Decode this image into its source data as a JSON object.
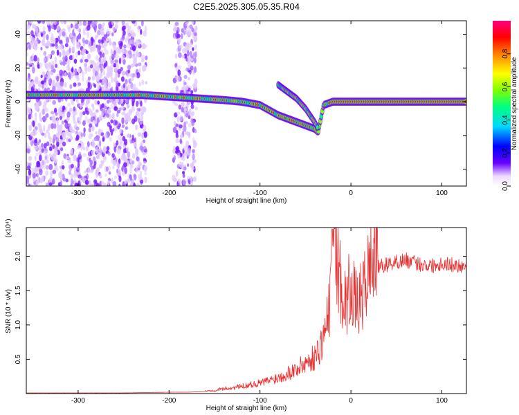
{
  "title": "C2E5.2025.305.05.35.R04",
  "chart_data": [
    {
      "type": "heatmap",
      "xlabel": "Height of straight line (km)",
      "ylabel": "Frequency (Hz)",
      "xlim": [
        -357,
        127
      ],
      "ylim": [
        -50,
        48
      ],
      "xticks": [
        -300,
        -200,
        -100,
        0,
        100
      ],
      "yticks": [
        -40,
        -20,
        0,
        20,
        40
      ],
      "colorbar": {
        "label": "Normalized spectral amplitude",
        "range": [
          0,
          1
        ],
        "ticks": [
          "0.0",
          "0.2",
          "0.4",
          "0.6",
          "0.8"
        ],
        "colors": [
          "#ffffff",
          "#f0d9ff",
          "#6600ff",
          "#0000ff",
          "#00d8ff",
          "#00ff80",
          "#7fff00",
          "#ffff00",
          "#ff8000",
          "#ff0000",
          "#ff0080"
        ]
      },
      "ridge": {
        "x": [
          -357,
          -300,
          -230,
          -200,
          -170,
          -140,
          -120,
          -100,
          -90,
          -80,
          -70,
          -60,
          -50,
          -40,
          -36,
          -30,
          -20,
          0,
          20,
          60,
          127
        ],
        "y": [
          4,
          4,
          4,
          3,
          2,
          1,
          0,
          -2,
          -5,
          -8,
          -10,
          -12,
          -14,
          -16,
          -18,
          -2,
          0,
          0,
          0,
          0,
          0
        ]
      },
      "branch": {
        "x": [
          -80,
          -70,
          -60,
          -50,
          -45,
          -40,
          -36
        ],
        "y": [
          10,
          6,
          2,
          -4,
          -8,
          -12,
          -16
        ]
      },
      "noise_band": [
        -357,
        -225
      ],
      "noise_band_2": [
        -195,
        -170
      ]
    },
    {
      "type": "line",
      "xlabel": "Height of straight line (km)",
      "ylabel": "SNR (10 * v/v)",
      "y_multiplier": "(x10⁴)",
      "xlim": [
        -357,
        127
      ],
      "ylim": [
        0,
        2.42
      ],
      "xticks": [
        -300,
        -200,
        -100,
        0,
        100
      ],
      "yticks": [
        "0.5",
        "1.0",
        "1.5",
        "2.0"
      ],
      "series": [
        {
          "color": "#e83030",
          "x": [
            -357,
            -300,
            -250,
            -200,
            -180,
            -160,
            -150,
            -140,
            -130,
            -120,
            -110,
            -100,
            -90,
            -80,
            -70,
            -60,
            -50,
            -40,
            -35,
            -30,
            -25,
            -22,
            -20,
            -18,
            -15,
            -10,
            -5,
            0,
            5,
            10,
            15,
            20,
            25,
            30,
            40,
            50,
            60,
            70,
            80,
            90,
            100,
            110,
            127
          ],
          "y": [
            0.01,
            0.01,
            0.01,
            0.02,
            0.02,
            0.03,
            0.04,
            0.06,
            0.07,
            0.09,
            0.11,
            0.13,
            0.16,
            0.2,
            0.25,
            0.3,
            0.38,
            0.45,
            0.55,
            0.7,
            0.95,
            1.3,
            1.8,
            2.0,
            1.6,
            1.3,
            1.1,
            1.4,
            1.1,
            1.15,
            1.3,
            1.55,
            1.75,
            1.85,
            1.88,
            1.92,
            1.95,
            1.9,
            1.88,
            1.87,
            1.9,
            1.88,
            1.86
          ]
        }
      ]
    }
  ]
}
